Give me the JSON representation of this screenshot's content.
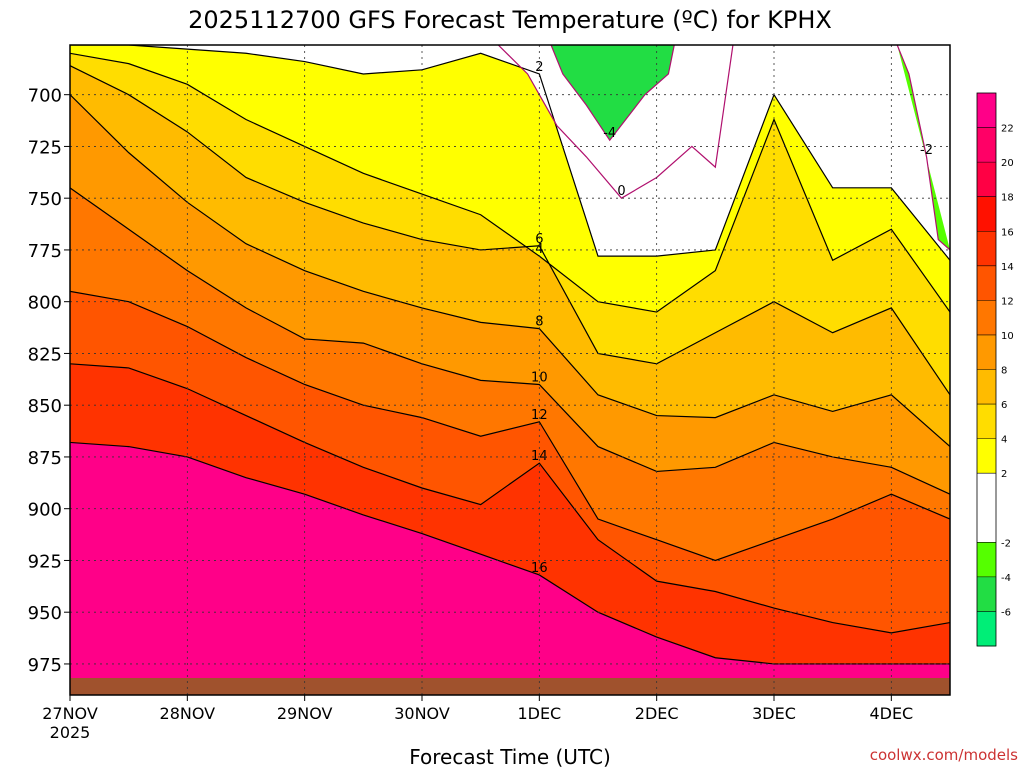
{
  "chart_data": {
    "type": "heatmap",
    "title": "2025112700 GFS Forecast Temperature (ºC) for KPHX",
    "xlabel": "Forecast Time (UTC)",
    "ylabel": "",
    "watermark": "coolwx.com/models",
    "x_ticks": [
      "27NOV",
      "28NOV",
      "29NOV",
      "30NOV",
      "1DEC",
      "2DEC",
      "3DEC",
      "4DEC"
    ],
    "x_year": "2025",
    "x_range_days": [
      0,
      7.5
    ],
    "y_ticks": [
      700,
      725,
      750,
      775,
      800,
      825,
      850,
      875,
      900,
      925,
      950,
      975
    ],
    "y_range_hpa": [
      676,
      990
    ],
    "y_axis": "pressure (hPa), inverted",
    "grid": true,
    "colorbar": {
      "bounds": [
        -8,
        -6,
        -4,
        -2,
        0,
        2,
        4,
        6,
        8,
        10,
        12,
        14,
        16,
        18,
        20,
        22,
        24
      ],
      "tick_labels": [
        "-6",
        "-4",
        "-2",
        "2",
        "4",
        "6",
        "8",
        "10",
        "12",
        "14",
        "16",
        "18",
        "20",
        "22"
      ],
      "colors": [
        "#00ee77",
        "#22dd44",
        "#55ff00",
        "#ffffff",
        "#ffffff",
        "#ffff00",
        "#ffdd00",
        "#ffbb00",
        "#ff9900",
        "#ff7700",
        "#ff5500",
        "#ff3300",
        "#ff1100",
        "#ff0044",
        "#ff0066",
        "#ff0088"
      ]
    },
    "contours": [
      {
        "value": 16,
        "label": "16",
        "x": [
          0,
          0.5,
          1,
          1.5,
          2,
          2.5,
          3,
          3.5,
          4,
          4.5,
          5,
          5.5,
          6,
          6.5,
          7,
          7.5
        ],
        "y": [
          868,
          870,
          875,
          885,
          893,
          903,
          912,
          922,
          932,
          950,
          962,
          972,
          975,
          975,
          975,
          975
        ]
      },
      {
        "value": 14,
        "label": "14",
        "x": [
          0,
          0.5,
          1,
          1.5,
          2,
          2.5,
          3,
          3.5,
          4,
          4.5,
          5,
          5.5,
          6,
          6.5,
          7,
          7.5
        ],
        "y": [
          830,
          832,
          842,
          855,
          868,
          880,
          890,
          898,
          878,
          915,
          935,
          940,
          948,
          955,
          960,
          955
        ]
      },
      {
        "value": 12,
        "label": "12",
        "x": [
          0,
          0.5,
          1,
          1.5,
          2,
          2.5,
          3,
          3.5,
          4,
          4.5,
          5,
          5.5,
          6,
          6.5,
          7,
          7.5
        ],
        "y": [
          795,
          800,
          812,
          827,
          840,
          850,
          856,
          865,
          858,
          905,
          915,
          925,
          915,
          905,
          893,
          905
        ]
      },
      {
        "value": 10,
        "label": "10",
        "x": [
          0,
          0.5,
          1,
          1.5,
          2,
          2.5,
          3,
          3.5,
          4,
          4.5,
          5,
          5.5,
          6,
          6.5,
          7,
          7.5
        ],
        "y": [
          745,
          765,
          785,
          803,
          818,
          820,
          830,
          838,
          840,
          870,
          882,
          880,
          868,
          875,
          880,
          893
        ]
      },
      {
        "value": 8,
        "label": "8",
        "x": [
          0,
          0.5,
          1,
          1.5,
          2,
          2.5,
          3,
          3.5,
          4,
          4.5,
          5,
          5.5,
          6,
          6.5,
          7,
          7.5
        ],
        "y": [
          700,
          728,
          752,
          772,
          785,
          795,
          803,
          810,
          813,
          845,
          855,
          856,
          845,
          853,
          845,
          870
        ]
      },
      {
        "value": 6,
        "label": "6",
        "x": [
          0,
          0.5,
          1,
          1.5,
          2,
          2.5,
          3,
          3.5,
          4,
          4.5,
          5,
          5.5,
          6,
          6.5,
          7,
          7.5
        ],
        "y": [
          686,
          700,
          718,
          740,
          752,
          762,
          770,
          775,
          773,
          825,
          830,
          815,
          800,
          815,
          803,
          845
        ]
      },
      {
        "value": 4,
        "label": "4",
        "x": [
          0,
          0.5,
          1,
          1.5,
          2,
          2.5,
          3,
          3.5,
          4,
          4.5,
          5,
          5.5,
          6,
          6.5,
          7,
          7.5
        ],
        "y": [
          680,
          685,
          695,
          712,
          725,
          738,
          748,
          758,
          778,
          800,
          805,
          785,
          712,
          780,
          765,
          805
        ]
      },
      {
        "value": 2,
        "label": "2",
        "x": [
          0,
          0.5,
          1,
          1.5,
          2,
          2.5,
          3,
          3.5,
          4,
          4.5,
          5,
          5.5,
          6,
          6.5,
          7,
          7.5
        ],
        "y": [
          676,
          676,
          678,
          680,
          684,
          690,
          688,
          680,
          690,
          778,
          778,
          775,
          700,
          745,
          745,
          780
        ]
      },
      {
        "value": 0,
        "label": "0",
        "x": [
          3.65,
          3.9,
          4.15,
          4.4,
          4.7,
          5.0,
          5.3,
          5.5,
          5.65
        ],
        "y": [
          676,
          690,
          715,
          730,
          750,
          740,
          725,
          735,
          676
        ]
      },
      {
        "value": -2,
        "label": "-2",
        "x": [
          7.05,
          7.15,
          7.3,
          7.4,
          7.5
        ],
        "y": [
          676,
          690,
          730,
          770,
          775
        ]
      },
      {
        "value": -4,
        "label": "-4",
        "x": [
          4.1,
          4.2,
          4.4,
          4.6,
          4.9,
          5.1,
          5.15
        ],
        "y": [
          676,
          690,
          705,
          722,
          700,
          690,
          676
        ]
      }
    ],
    "surface_note": "brown ground layer below ~975 hPa"
  }
}
